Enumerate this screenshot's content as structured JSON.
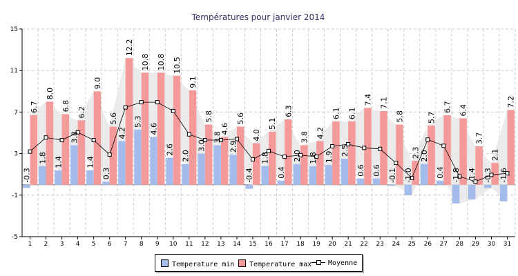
{
  "chart_data": {
    "type": "bar",
    "title": "Températures pour janvier 2014",
    "categories": [
      "1",
      "2",
      "3",
      "4",
      "5",
      "6",
      "7",
      "8",
      "9",
      "10",
      "11",
      "12",
      "13",
      "14",
      "15",
      "16",
      "17",
      "18",
      "19",
      "20",
      "21",
      "22",
      "23",
      "24",
      "25",
      "26",
      "27",
      "28",
      "29",
      "30",
      "31"
    ],
    "series": [
      {
        "name": "Temperature min",
        "type": "bar",
        "color": "#a4bcec",
        "values": [
          -0.3,
          1.8,
          1.4,
          3.8,
          1.4,
          0.3,
          4.2,
          5.3,
          4.6,
          2.6,
          2.0,
          3.0,
          3.8,
          2.9,
          -0.4,
          1.8,
          0.4,
          2.0,
          1.8,
          1.9,
          2.5,
          0.6,
          0.6,
          -0.1,
          -1.0,
          2.0,
          0.4,
          -1.8,
          -1.4,
          -0.3,
          -1.6
        ]
      },
      {
        "name": "Temperature max",
        "type": "bar",
        "color": "#f49a9a",
        "values": [
          6.7,
          8.0,
          6.8,
          6.2,
          9.0,
          5.6,
          12.2,
          10.8,
          10.8,
          10.5,
          9.1,
          5.8,
          4.6,
          5.6,
          4.0,
          5.1,
          6.3,
          3.8,
          4.2,
          6.1,
          6.1,
          7.4,
          7.1,
          5.8,
          2.3,
          5.7,
          6.7,
          6.4,
          3.7,
          2.1,
          7.2
        ]
      },
      {
        "name": "Moyenne",
        "type": "line",
        "color": "#000000",
        "values": [
          3.2,
          4.55,
          4.3,
          5.05,
          4.3,
          2.9,
          7.45,
          7.95,
          7.95,
          7.1,
          4.85,
          4.3,
          4.3,
          4.4,
          2.45,
          3.25,
          2.7,
          2.85,
          2.7,
          3.7,
          3.9,
          3.55,
          3.45,
          2.1,
          0.65,
          4.35,
          3.75,
          0.8,
          0.3,
          0.95,
          1.1
        ]
      }
    ],
    "ylim": [
      -5,
      15
    ],
    "yticks": [
      -5,
      -1,
      3,
      7,
      11,
      15
    ],
    "grid": true,
    "legend": "bottom"
  },
  "legend": {
    "min_label": "Temperature min",
    "max_label": "Temperature max",
    "avg_label": "Moyenne"
  }
}
